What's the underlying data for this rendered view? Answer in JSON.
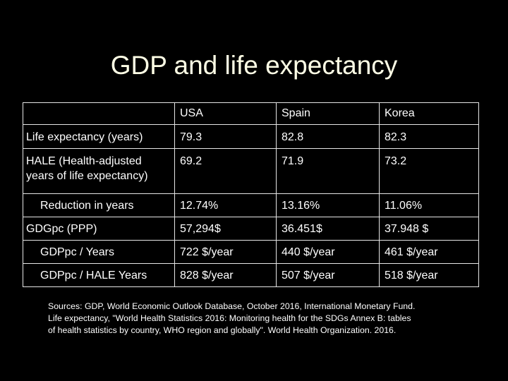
{
  "title": "GDP and life expectancy",
  "table": {
    "headers": [
      "",
      "USA",
      "Spain",
      "Korea"
    ],
    "rows": [
      {
        "label": "Life expectancy (years)",
        "values": [
          "79.3",
          "82.8",
          "82.3"
        ]
      },
      {
        "label": "HALE (Health-adjusted years of life expectancy)",
        "values": [
          "69.2",
          "71.9",
          "73.2"
        ]
      },
      {
        "label": "Reduction in years",
        "values": [
          "12.74%",
          "13.16%",
          "11.06%"
        ]
      },
      {
        "label": "GDGpc (PPP)",
        "values": [
          "57,294$",
          "36.451$",
          "37.948 $"
        ]
      },
      {
        "label": "GDPpc / Years",
        "values": [
          "722 $/year",
          "440 $/year",
          "461 $/year"
        ]
      },
      {
        "label": "GDPpc / HALE Years",
        "values": [
          "828 $/year",
          "507 $/year",
          "518 $/year"
        ]
      }
    ]
  },
  "sources": [
    "Sources: GDP, World Economic Outlook Database, October 2016, International Monetary Fund.",
    "Life expectancy, \"World Health Statistics 2016: Monitoring health for the SDGs Annex B: tables",
    "of health statistics by country, WHO region and globally\". World Health Organization. 2016."
  ]
}
